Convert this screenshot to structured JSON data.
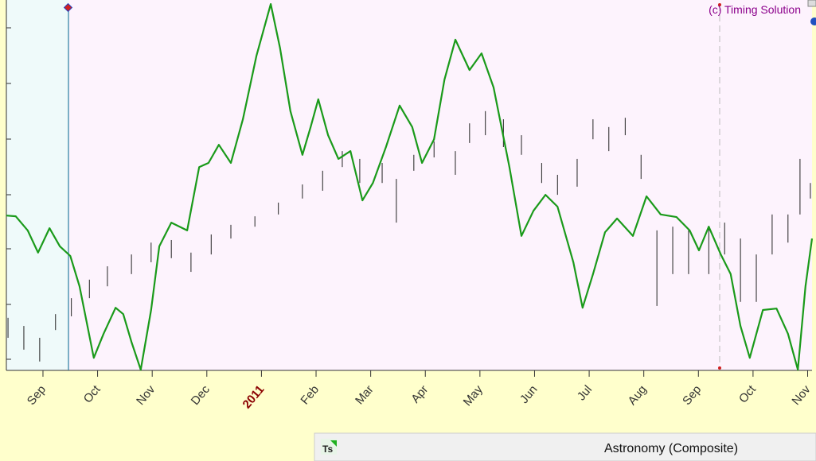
{
  "chart_data": {
    "type": "line",
    "credit": "(c) Timing Solution",
    "panel_title": "Astronomy (Composite)",
    "icon_text": "Ts",
    "xlim": [
      -0.67,
      14.08
    ],
    "ylim": [
      0,
      100
    ],
    "xticks": [
      {
        "value": 0,
        "label": "Sep"
      },
      {
        "value": 1,
        "label": "Oct"
      },
      {
        "value": 2,
        "label": "Nov"
      },
      {
        "value": 3,
        "label": "Dec"
      },
      {
        "value": 4,
        "label": "2011",
        "color": "#8b0000"
      },
      {
        "value": 5,
        "label": "Feb"
      },
      {
        "value": 6,
        "label": "Mar"
      },
      {
        "value": 7,
        "label": "Apr"
      },
      {
        "value": 8,
        "label": "May"
      },
      {
        "value": 9,
        "label": "Jun"
      },
      {
        "value": 10,
        "label": "Jul"
      },
      {
        "value": 11,
        "label": "Aug"
      },
      {
        "value": 12,
        "label": "Sep"
      },
      {
        "value": 13,
        "label": "Oct"
      },
      {
        "value": 14,
        "label": "Nov"
      }
    ],
    "curve": {
      "color": "#1a9a1a",
      "x": [
        -0.67,
        -0.5,
        -0.28,
        -0.09,
        0.12,
        0.31,
        0.5,
        0.67,
        0.93,
        1.11,
        1.33,
        1.47,
        1.62,
        1.79,
        1.98,
        2.13,
        2.35,
        2.64,
        2.86,
        3.03,
        3.22,
        3.44,
        3.66,
        3.91,
        4.17,
        4.34,
        4.53,
        4.75,
        4.9,
        5.04,
        5.22,
        5.41,
        5.63,
        5.85,
        6.04,
        6.28,
        6.53,
        6.76,
        6.94,
        7.16,
        7.35,
        7.55,
        7.81,
        8.03,
        8.25,
        8.54,
        8.76,
        8.98,
        9.2,
        9.42,
        9.71,
        9.88,
        10.07,
        10.29,
        10.51,
        10.8,
        11.05,
        11.31,
        11.6,
        11.84,
        12.01,
        12.19,
        12.41,
        12.59,
        12.77,
        12.94,
        13.18,
        13.43,
        13.64,
        13.82,
        13.96,
        14.08
      ],
      "values": [
        41.8,
        41.6,
        37.8,
        31.8,
        38.4,
        33.5,
        30.9,
        22.7,
        3.4,
        9.9,
        16.9,
        15.2,
        7.7,
        0.2,
        16.3,
        33.5,
        39.9,
        37.8,
        54.9,
        56.0,
        60.9,
        56.0,
        67.8,
        85.0,
        98.9,
        87.1,
        70.0,
        58.2,
        65.7,
        73.2,
        63.5,
        57.1,
        59.2,
        45.9,
        50.6,
        60.3,
        71.5,
        65.7,
        56.0,
        62.4,
        78.5,
        89.3,
        81.1,
        85.6,
        76.4,
        54.9,
        36.3,
        43.1,
        47.4,
        44.2,
        29.2,
        16.9,
        26.0,
        37.3,
        41.0,
        36.3,
        47.0,
        42.1,
        41.4,
        37.8,
        32.4,
        38.8,
        31.3,
        26.0,
        12.0,
        3.4,
        16.3,
        16.7,
        9.9,
        0.2,
        22.7,
        35.6
      ]
    },
    "price": {
      "color": "#222222",
      "x": [
        -0.64,
        -0.35,
        -0.06,
        0.23,
        0.52,
        0.85,
        1.18,
        1.62,
        1.98,
        2.35,
        2.71,
        3.08,
        3.44,
        3.88,
        4.31,
        4.75,
        5.12,
        5.48,
        5.8,
        6.21,
        6.47,
        6.79,
        7.16,
        7.55,
        7.81,
        8.1,
        8.43,
        8.76,
        9.13,
        9.42,
        9.78,
        10.07,
        10.36,
        10.66,
        10.95,
        11.24,
        11.53,
        11.82,
        12.19,
        12.48,
        12.77,
        13.06,
        13.35,
        13.64,
        13.86,
        14.05
      ],
      "high": [
        14.2,
        12.0,
        8.8,
        15.2,
        19.5,
        24.5,
        28.1,
        31.3,
        34.5,
        35.2,
        31.8,
        36.7,
        39.3,
        41.6,
        45.3,
        50.2,
        53.9,
        59.2,
        57.1,
        56.0,
        51.7,
        58.2,
        61.8,
        59.2,
        66.7,
        70.0,
        67.8,
        63.5,
        56.0,
        52.8,
        57.1,
        67.8,
        65.7,
        68.2,
        58.2,
        37.8,
        38.8,
        37.8,
        38.8,
        39.9,
        35.6,
        31.3,
        42.1,
        42.1,
        57.1,
        50.6
      ],
      "low": [
        8.8,
        5.6,
        2.4,
        10.9,
        14.6,
        19.5,
        22.7,
        26.0,
        29.2,
        30.3,
        26.6,
        31.3,
        35.6,
        38.8,
        42.1,
        46.4,
        48.5,
        54.9,
        50.6,
        50.6,
        39.9,
        53.9,
        57.5,
        52.8,
        61.4,
        63.5,
        60.3,
        58.2,
        50.6,
        47.4,
        49.6,
        62.4,
        59.2,
        63.5,
        51.7,
        17.4,
        26.0,
        26.0,
        26.0,
        31.3,
        18.5,
        18.5,
        31.3,
        34.5,
        42.1,
        46.4
      ]
    }
  }
}
